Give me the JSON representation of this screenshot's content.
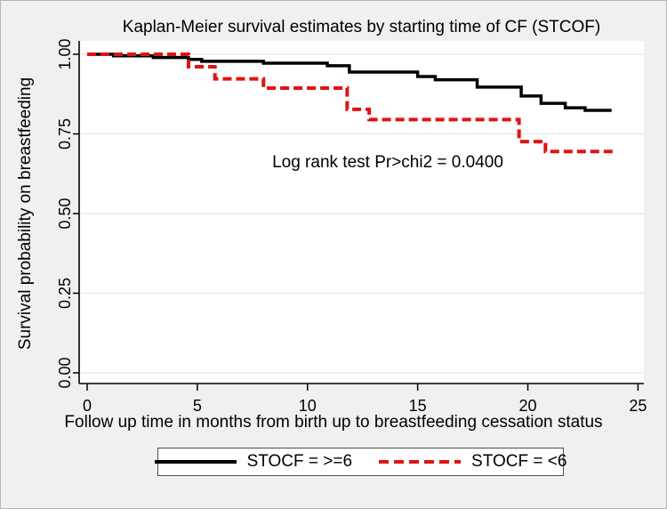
{
  "figure": {
    "title": "Kaplan-Meier survival estimates by starting time of CF (STCOF)",
    "background_color": "#f0f0f0",
    "plot_background_color": "#ffffff",
    "gridline_color": "#e6e6e6"
  },
  "annotation": "Log rank test Pr>chi2 = 0.0400",
  "x_axis": {
    "label": "Follow up time in months from birth up to breastfeeding cessation status",
    "tick_labels": [
      "0",
      "5",
      "10",
      "15",
      "20",
      "25"
    ],
    "tick_values": [
      0,
      5,
      10,
      15,
      20,
      25
    ]
  },
  "y_axis": {
    "label": "Survival probability on breastfeeding",
    "tick_labels": [
      "0.00",
      "0.25",
      "0.50",
      "0.75",
      "1.00"
    ],
    "tick_values": [
      0.0,
      0.25,
      0.5,
      0.75,
      1.0
    ]
  },
  "legend": {
    "entries": [
      {
        "label": "STOCF = >=6",
        "color": "#000000",
        "style": "solid"
      },
      {
        "label": "STOCF = <6",
        "color": "#e01313",
        "style": "dashed"
      }
    ]
  },
  "chart_data": {
    "type": "line",
    "subtype": "kaplan-meier-step",
    "title": "Kaplan-Meier survival estimates by starting time of CF (STCOF)",
    "xlabel": "Follow up time in months from birth up to breastfeeding cessation status",
    "ylabel": "Survival probability on breastfeeding",
    "xlim": [
      0,
      25
    ],
    "ylim": [
      0,
      1
    ],
    "x_ticks": [
      0,
      5,
      10,
      15,
      20,
      25
    ],
    "y_ticks": [
      0.0,
      0.25,
      0.5,
      0.75,
      1.0
    ],
    "grid": "horizontal",
    "legend_position": "bottom",
    "annotation": "Log rank test Pr>chi2 = 0.0400",
    "series": [
      {
        "name": "STOCF = >=6",
        "color": "#000000",
        "dash": "solid",
        "points": [
          [
            0,
            1.0
          ],
          [
            1.2,
            0.995
          ],
          [
            3,
            0.99
          ],
          [
            4.6,
            0.984
          ],
          [
            5.2,
            0.978
          ],
          [
            8,
            0.972
          ],
          [
            10.9,
            0.964
          ],
          [
            11.9,
            0.944
          ],
          [
            15,
            0.93
          ],
          [
            15.8,
            0.92
          ],
          [
            17.7,
            0.897
          ],
          [
            19.7,
            0.869
          ],
          [
            20.6,
            0.846
          ],
          [
            21.7,
            0.832
          ],
          [
            22.6,
            0.824
          ],
          [
            23.8,
            0.824
          ]
        ]
      },
      {
        "name": "STOCF = <6",
        "color": "#e01313",
        "dash": "dashed",
        "points": [
          [
            0,
            1.0
          ],
          [
            4.6,
            0.961
          ],
          [
            5.8,
            0.923
          ],
          [
            8,
            0.894
          ],
          [
            11.8,
            0.827
          ],
          [
            12.8,
            0.795
          ],
          [
            19.6,
            0.726
          ],
          [
            20.8,
            0.695
          ],
          [
            23.9,
            0.695
          ]
        ]
      }
    ]
  }
}
